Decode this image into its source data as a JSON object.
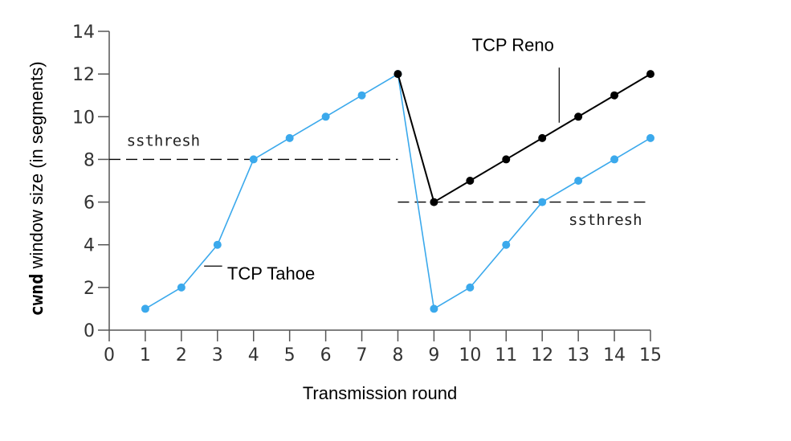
{
  "chart_data": {
    "type": "line",
    "xlabel": "Transmission round",
    "ylabel_code": "cwnd",
    "ylabel_rest": "  window size (in segments)",
    "xlim": [
      0,
      15
    ],
    "ylim": [
      0,
      14
    ],
    "x_ticks": [
      0,
      1,
      2,
      3,
      4,
      5,
      6,
      7,
      8,
      9,
      10,
      11,
      12,
      13,
      14,
      15
    ],
    "y_ticks": [
      0,
      2,
      4,
      6,
      8,
      10,
      12,
      14
    ],
    "grid": false,
    "series": [
      {
        "name": "TCP Tahoe",
        "color": "#3ba9ec",
        "x": [
          1,
          2,
          3,
          4,
          5,
          6,
          7,
          8,
          9,
          10,
          11,
          12,
          13,
          14,
          15
        ],
        "values": [
          1,
          2,
          4,
          8,
          9,
          10,
          11,
          12,
          1,
          2,
          4,
          6,
          7,
          8,
          9
        ]
      },
      {
        "name": "TCP Reno",
        "color": "#000000",
        "x": [
          8,
          9,
          10,
          11,
          12,
          13,
          14,
          15
        ],
        "values": [
          12,
          6,
          7,
          8,
          9,
          10,
          11,
          12
        ]
      }
    ],
    "thresholds": [
      {
        "label": "ssthresh",
        "value": 8,
        "x_range": [
          0,
          8
        ]
      },
      {
        "label": "ssthresh",
        "value": 6,
        "x_range": [
          8,
          15
        ]
      }
    ]
  }
}
